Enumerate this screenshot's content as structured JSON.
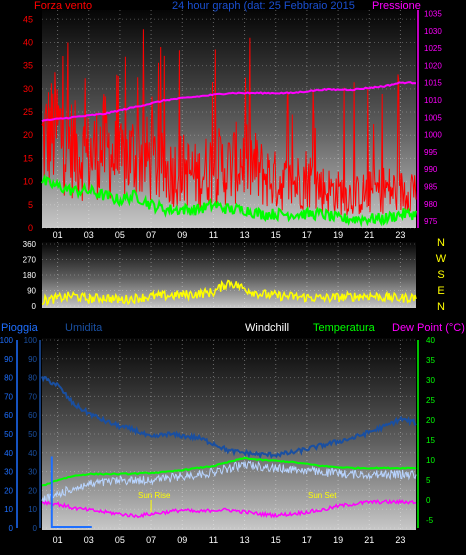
{
  "panel_wind": {
    "left_label": "Forza vento",
    "center_label": "24 hour graph (dat:  25 Febbraio 2015",
    "right_label": "Pressione",
    "y_left_ticks": [
      "45",
      "40",
      "35",
      "30",
      "25",
      "20",
      "15",
      "10",
      "5",
      "0"
    ],
    "y_right_ticks": [
      "1035",
      "1030",
      "1025",
      "1020",
      "1015",
      "1010",
      "1005",
      "1000",
      "995",
      "990",
      "985",
      "980",
      "975"
    ],
    "x_ticks": [
      "01",
      "03",
      "05",
      "07",
      "09",
      "11",
      "13",
      "15",
      "17",
      "19",
      "21",
      "23"
    ]
  },
  "panel_dir": {
    "y_ticks": [
      "360",
      "270",
      "180",
      "90",
      "0"
    ],
    "compass": [
      "N",
      "W",
      "S",
      "E",
      "N"
    ],
    "x_ticks": [
      "01",
      "03",
      "05",
      "07",
      "09",
      "11",
      "13",
      "15",
      "17",
      "19",
      "21",
      "23"
    ]
  },
  "panel_temp": {
    "header": {
      "pioggia": "Pioggia",
      "umidita": "Umidita",
      "windchill": "Windchill",
      "temperatura": "Temperatura",
      "dewpoint": "Dew Point (°C)"
    },
    "y_left_ticks": [
      "100",
      "90",
      "80",
      "70",
      "60",
      "50",
      "40",
      "30",
      "20",
      "10",
      "0"
    ],
    "y_right_ticks": [
      "40",
      "35",
      "30",
      "25",
      "20",
      "15",
      "10",
      "5",
      "0",
      "-5"
    ],
    "x_ticks": [
      "01",
      "03",
      "05",
      "07",
      "09",
      "11",
      "13",
      "15",
      "17",
      "19",
      "21",
      "23"
    ],
    "annotations": {
      "sunrise": "Sun Rise",
      "sunset": "Sun Set"
    }
  },
  "colors": {
    "wind": "#ff0000",
    "pressure": "#ff00ff",
    "gust_avg": "#00ff00",
    "direction": "#ffff00",
    "humidity": "#1a4fa0",
    "temperature": "#00ff00",
    "windchill": "#b8d4ff",
    "dewpoint": "#ff00ff",
    "rain": "#1e6fff",
    "header_text": "#ffffff"
  },
  "chart_data": [
    {
      "type": "line",
      "series": [
        {
          "name": "Forza vento",
          "x": [
            0,
            1,
            2,
            3,
            4,
            5,
            6,
            7,
            8,
            9,
            10,
            11,
            12,
            13,
            14,
            15,
            16,
            17,
            18,
            19,
            20,
            21,
            22,
            23,
            24
          ],
          "values": [
            22,
            25,
            20,
            18,
            21,
            16,
            19,
            17,
            14,
            15,
            13,
            16,
            15,
            18,
            14,
            12,
            11,
            13,
            10,
            9,
            8,
            9,
            10,
            9,
            11
          ]
        },
        {
          "name": "",
          "x": [
            0,
            1,
            2,
            3,
            4,
            5,
            6,
            7,
            8,
            9,
            10,
            11,
            12,
            13,
            14,
            15,
            16,
            17,
            18,
            19,
            20,
            21,
            22,
            23,
            24
          ],
          "values": [
            10,
            9,
            8,
            8,
            7,
            6,
            7,
            5,
            4,
            4,
            4,
            5,
            4,
            4,
            3,
            3,
            3,
            3,
            3,
            2,
            2,
            2,
            2,
            3,
            3
          ]
        },
        {
          "name": "Pressione",
          "x": [
            0,
            2,
            4,
            6,
            8,
            10,
            12,
            14,
            16,
            18,
            20,
            22,
            23,
            24
          ],
          "values": [
            1004,
            1005,
            1006,
            1008,
            1010,
            1011,
            1012,
            1012,
            1012,
            1013,
            1013,
            1014,
            1015,
            1015
          ]
        }
      ],
      "y_left_range": [
        0,
        47
      ],
      "y_right_range": [
        973,
        1036
      ],
      "x_range": [
        0,
        24
      ],
      "grid": true
    },
    {
      "type": "line",
      "series": [
        {
          "name": "",
          "x": [
            0,
            1,
            2,
            3,
            4,
            5,
            6,
            7,
            8,
            9,
            10,
            11,
            12,
            13,
            14,
            15,
            16,
            17,
            18,
            19,
            20,
            21,
            22,
            23,
            24
          ],
          "values": [
            30,
            45,
            60,
            40,
            50,
            35,
            45,
            55,
            60,
            65,
            70,
            80,
            140,
            100,
            70,
            60,
            55,
            50,
            45,
            50,
            55,
            60,
            50,
            45,
            50
          ]
        }
      ],
      "y_range": [
        0,
        360
      ],
      "x_range": [
        0,
        24
      ],
      "grid": true
    },
    {
      "type": "line",
      "series": [
        {
          "name": "Umidita",
          "axis": "left",
          "x": [
            0,
            1,
            2,
            3,
            4,
            5,
            6,
            7,
            8,
            9,
            10,
            11,
            12,
            13,
            14,
            15,
            16,
            17,
            18,
            19,
            20,
            21,
            22,
            23,
            24
          ],
          "values": [
            80,
            76,
            66,
            61,
            57,
            54,
            52,
            48,
            50,
            49,
            48,
            45,
            41,
            40,
            39,
            39,
            40,
            42,
            44,
            46,
            48,
            51,
            54,
            58,
            56
          ]
        },
        {
          "name": "Temperatura",
          "axis": "right",
          "x": [
            0,
            1,
            2,
            3,
            4,
            5,
            6,
            7,
            8,
            9,
            10,
            11,
            12,
            13,
            14,
            15,
            16,
            17,
            18,
            19,
            20,
            21,
            22,
            23,
            24
          ],
          "values": [
            3.5,
            5,
            6,
            6.5,
            6.5,
            6.5,
            6.6,
            6.8,
            7,
            7.5,
            8,
            8.5,
            9.5,
            10.5,
            10,
            9.8,
            9.5,
            9,
            8.5,
            8.2,
            8,
            8,
            8,
            8,
            8
          ]
        },
        {
          "name": "Windchill",
          "axis": "right",
          "x": [
            0,
            1,
            2,
            3,
            4,
            5,
            6,
            7,
            8,
            9,
            10,
            11,
            12,
            13,
            14,
            15,
            16,
            17,
            18,
            19,
            20,
            21,
            22,
            23,
            24
          ],
          "values": [
            1,
            2.5,
            4,
            5,
            5.5,
            6,
            6,
            6.2,
            6.5,
            7,
            7.5,
            8,
            9,
            10,
            9.5,
            9,
            8.8,
            8.5,
            8,
            7.8,
            7.5,
            7.5,
            7.5,
            7.5,
            7.5
          ]
        },
        {
          "name": "Dew Point (°C)",
          "axis": "right",
          "x": [
            0,
            1,
            2,
            3,
            4,
            5,
            6,
            7,
            8,
            9,
            10,
            11,
            12,
            13,
            14,
            15,
            16,
            17,
            18,
            19,
            20,
            21,
            22,
            23,
            24
          ],
          "values": [
            -0.5,
            -1,
            -2,
            -2.5,
            -3,
            -3.5,
            -4,
            -3.5,
            -3,
            -2.5,
            -3,
            -2.5,
            -2.5,
            -3,
            -3.5,
            -3.8,
            -3.5,
            -3,
            -2.5,
            -1.5,
            -1,
            -0.5,
            -0.5,
            -0.5,
            -0.5
          ]
        },
        {
          "name": "Pioggia",
          "axis": "left",
          "x": [
            0,
            0.5
          ],
          "values": [
            0,
            38
          ]
        }
      ],
      "y_left_range": [
        0,
        100
      ],
      "y_right_range": [
        -7,
        40
      ],
      "x_range": [
        0,
        24
      ],
      "grid": true
    }
  ]
}
